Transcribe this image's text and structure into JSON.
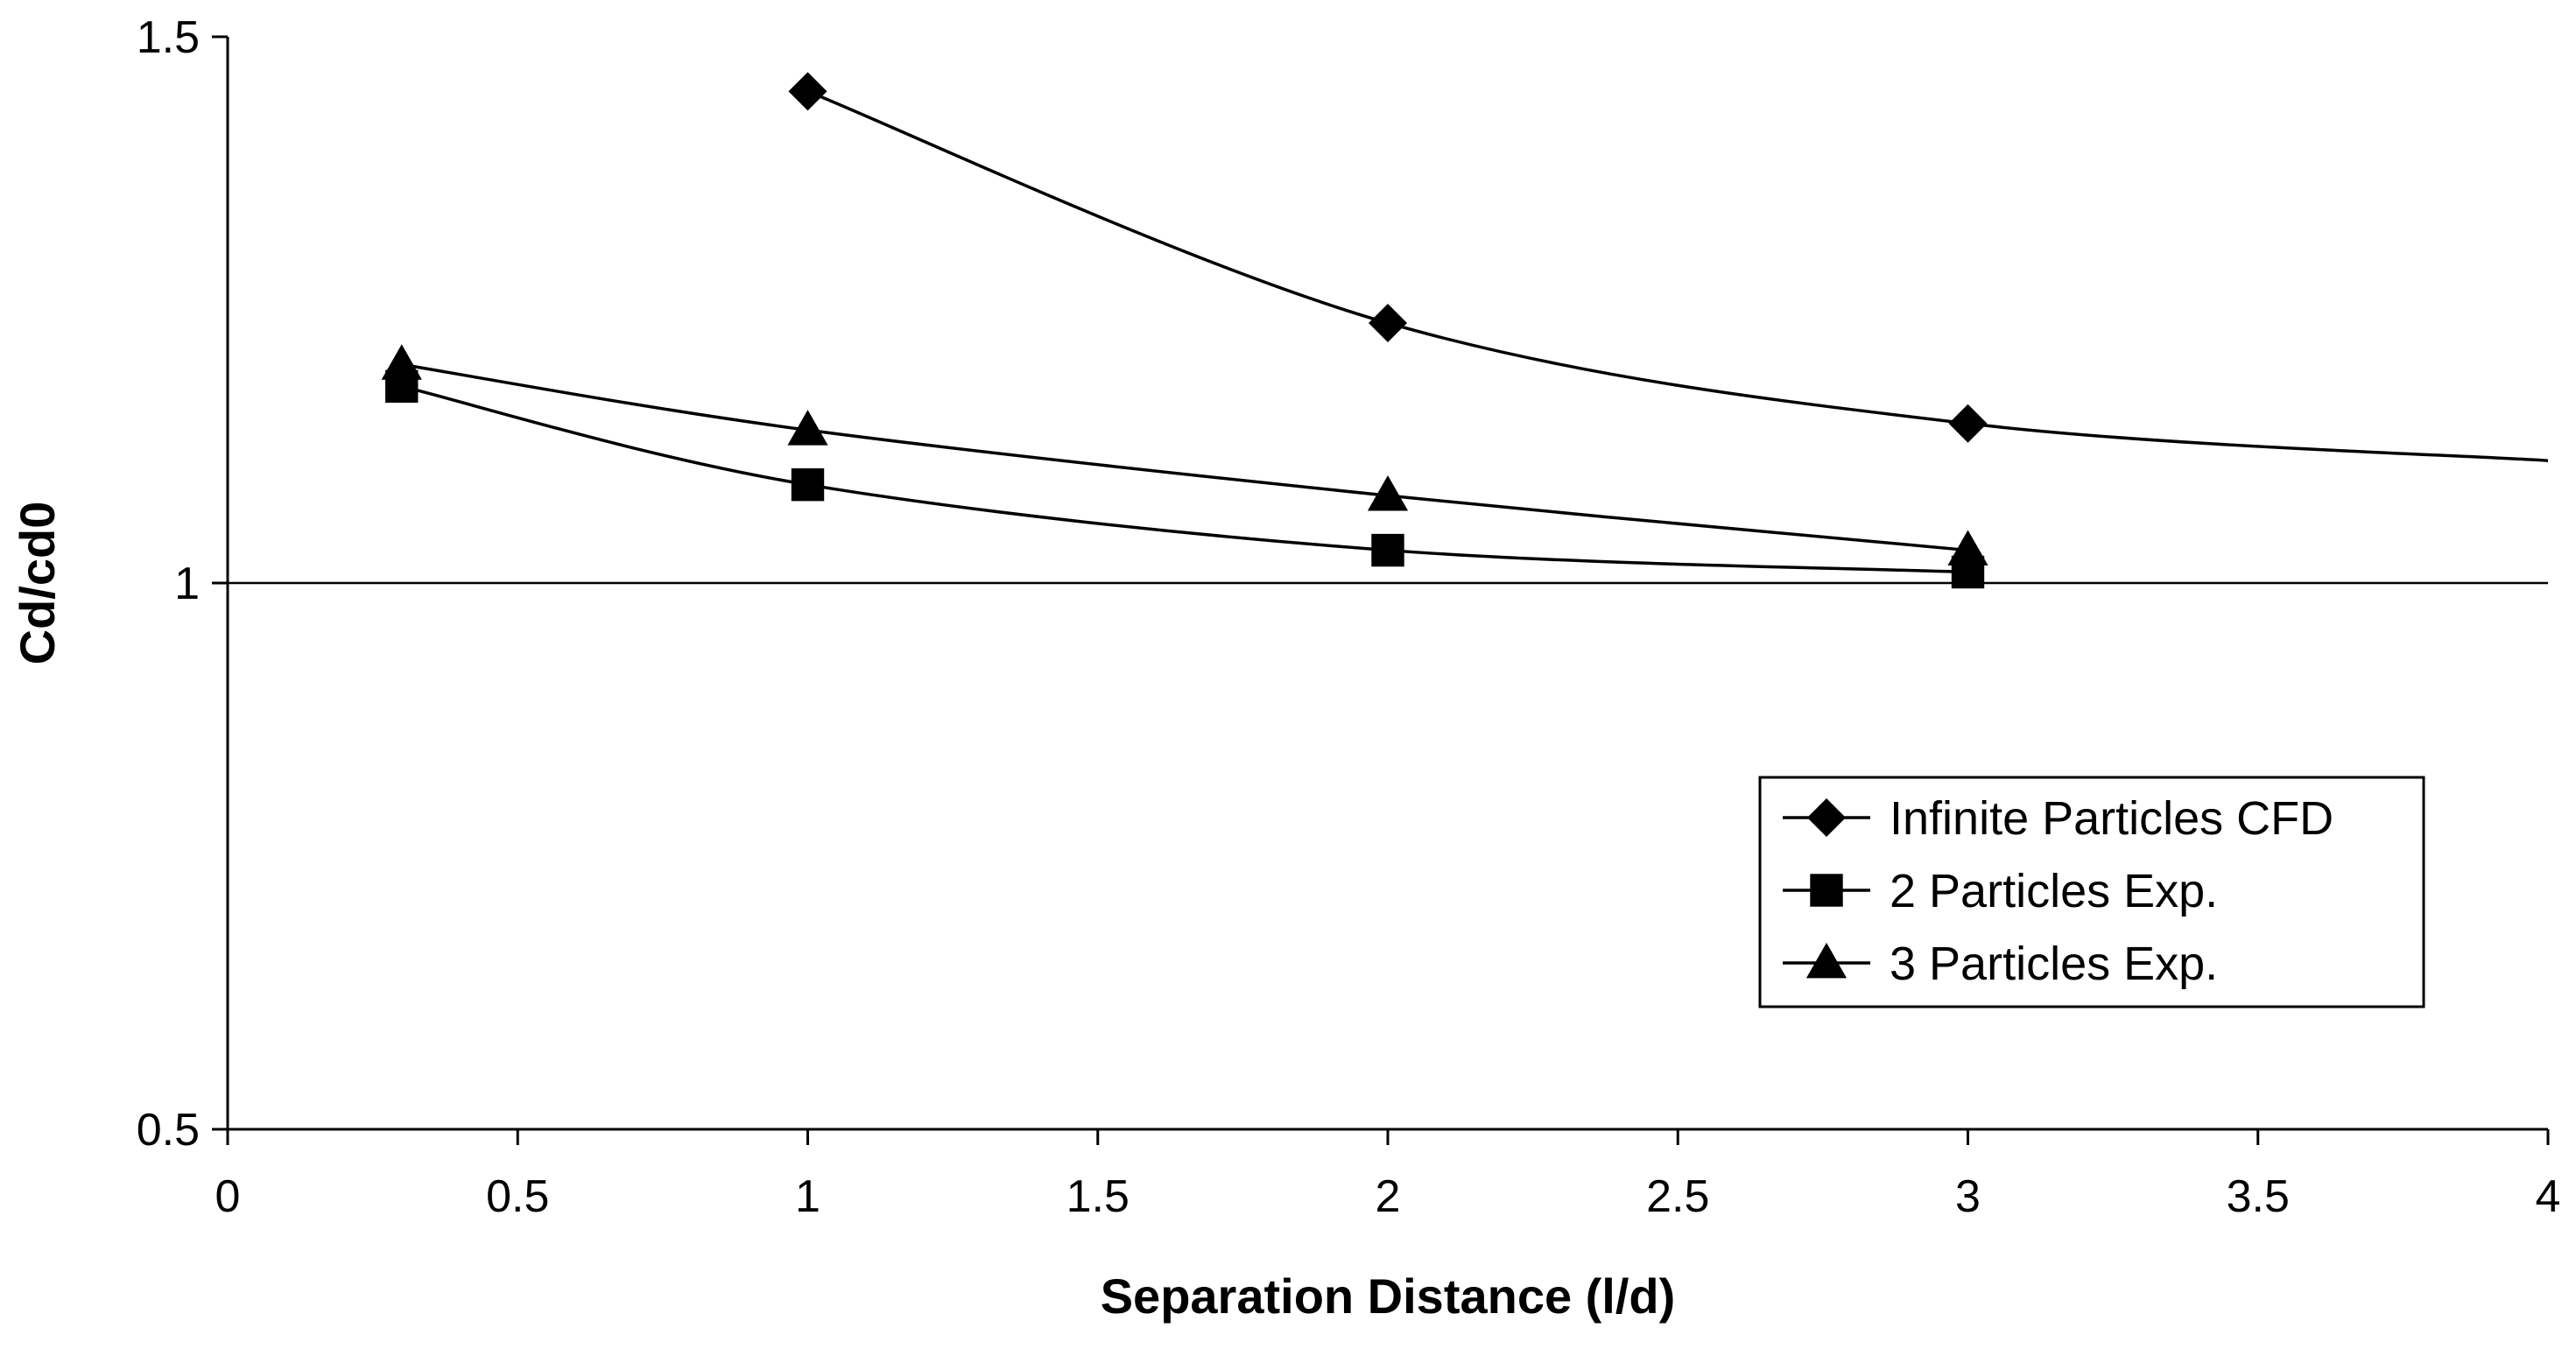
{
  "chart_data": {
    "type": "line",
    "title": "",
    "xlabel": "Separation Distance (l/d)",
    "ylabel": "Cd/cd0",
    "xlim": [
      0,
      4
    ],
    "ylim": [
      0.5,
      1.5
    ],
    "x_ticks": [
      0,
      0.5,
      1,
      1.5,
      2,
      2.5,
      3,
      3.5,
      4
    ],
    "x_tick_labels": [
      "0",
      "0.5",
      "1",
      "1.5",
      "2",
      "2.5",
      "3",
      "3.5",
      "4"
    ],
    "y_ticks": [
      0.5,
      1,
      1.5
    ],
    "y_tick_labels": [
      "0.5",
      "1",
      "1.5"
    ],
    "reference_line": 1.0,
    "legend_position": "lower-right",
    "series": [
      {
        "name": "Infinite Particles CFD",
        "marker": "diamond",
        "color": "#000000",
        "x": [
          1,
          2,
          3
        ],
        "y": [
          1.45,
          1.238,
          1.146
        ],
        "curve_extension": {
          "x": [
            3,
            4
          ],
          "y": [
            1.146,
            1.112
          ]
        }
      },
      {
        "name": "2 Particles Exp.",
        "marker": "square",
        "color": "#000000",
        "x": [
          0.3,
          1,
          2,
          3
        ],
        "y": [
          1.18,
          1.09,
          1.03,
          1.01
        ]
      },
      {
        "name": "3 Particles Exp.",
        "marker": "triangle",
        "color": "#000000",
        "x": [
          0.3,
          1,
          2,
          3
        ],
        "y": [
          1.2,
          1.14,
          1.08,
          1.03
        ]
      }
    ]
  }
}
